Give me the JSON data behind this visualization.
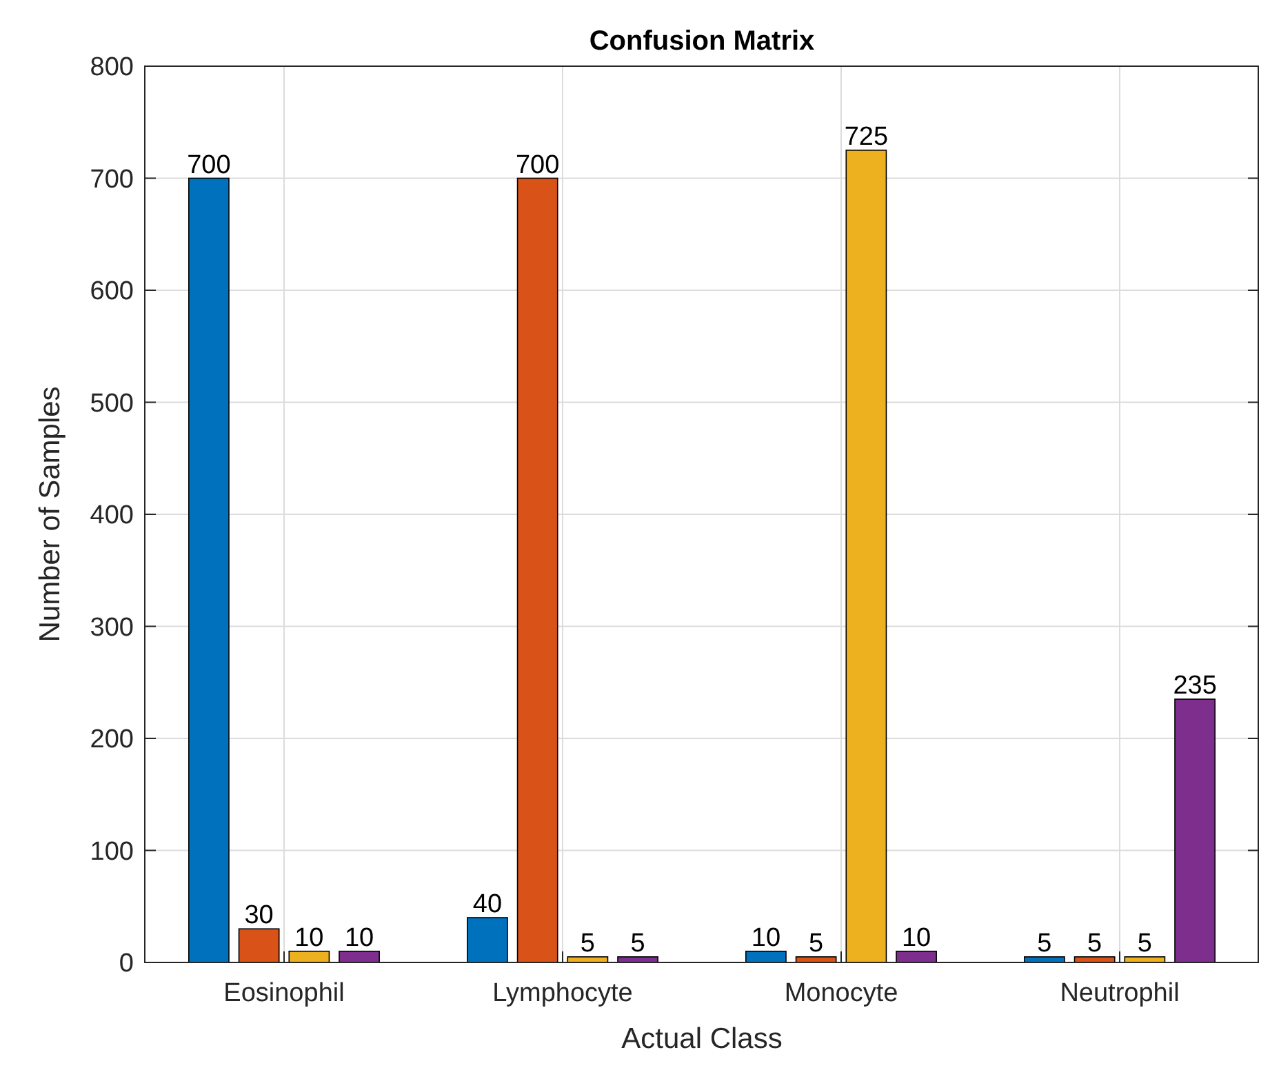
{
  "chart_data": {
    "type": "bar",
    "title": "Confusion Matrix",
    "xlabel": "Actual Class",
    "ylabel": "Number of Samples",
    "categories": [
      "Eosinophil",
      "Lymphocyte",
      "Monocyte",
      "Neutrophil"
    ],
    "series": [
      {
        "color": "#0072bd",
        "values": [
          700,
          40,
          10,
          5
        ]
      },
      {
        "color": "#d95319",
        "values": [
          30,
          700,
          5,
          5
        ]
      },
      {
        "color": "#edb120",
        "values": [
          10,
          5,
          725,
          5
        ]
      },
      {
        "color": "#7e2f8e",
        "values": [
          10,
          5,
          10,
          235
        ]
      }
    ],
    "ylim": [
      0,
      800
    ],
    "yticks": [
      0,
      100,
      200,
      300,
      400,
      500,
      600,
      700,
      800
    ],
    "grid": true,
    "data_labels": true
  }
}
